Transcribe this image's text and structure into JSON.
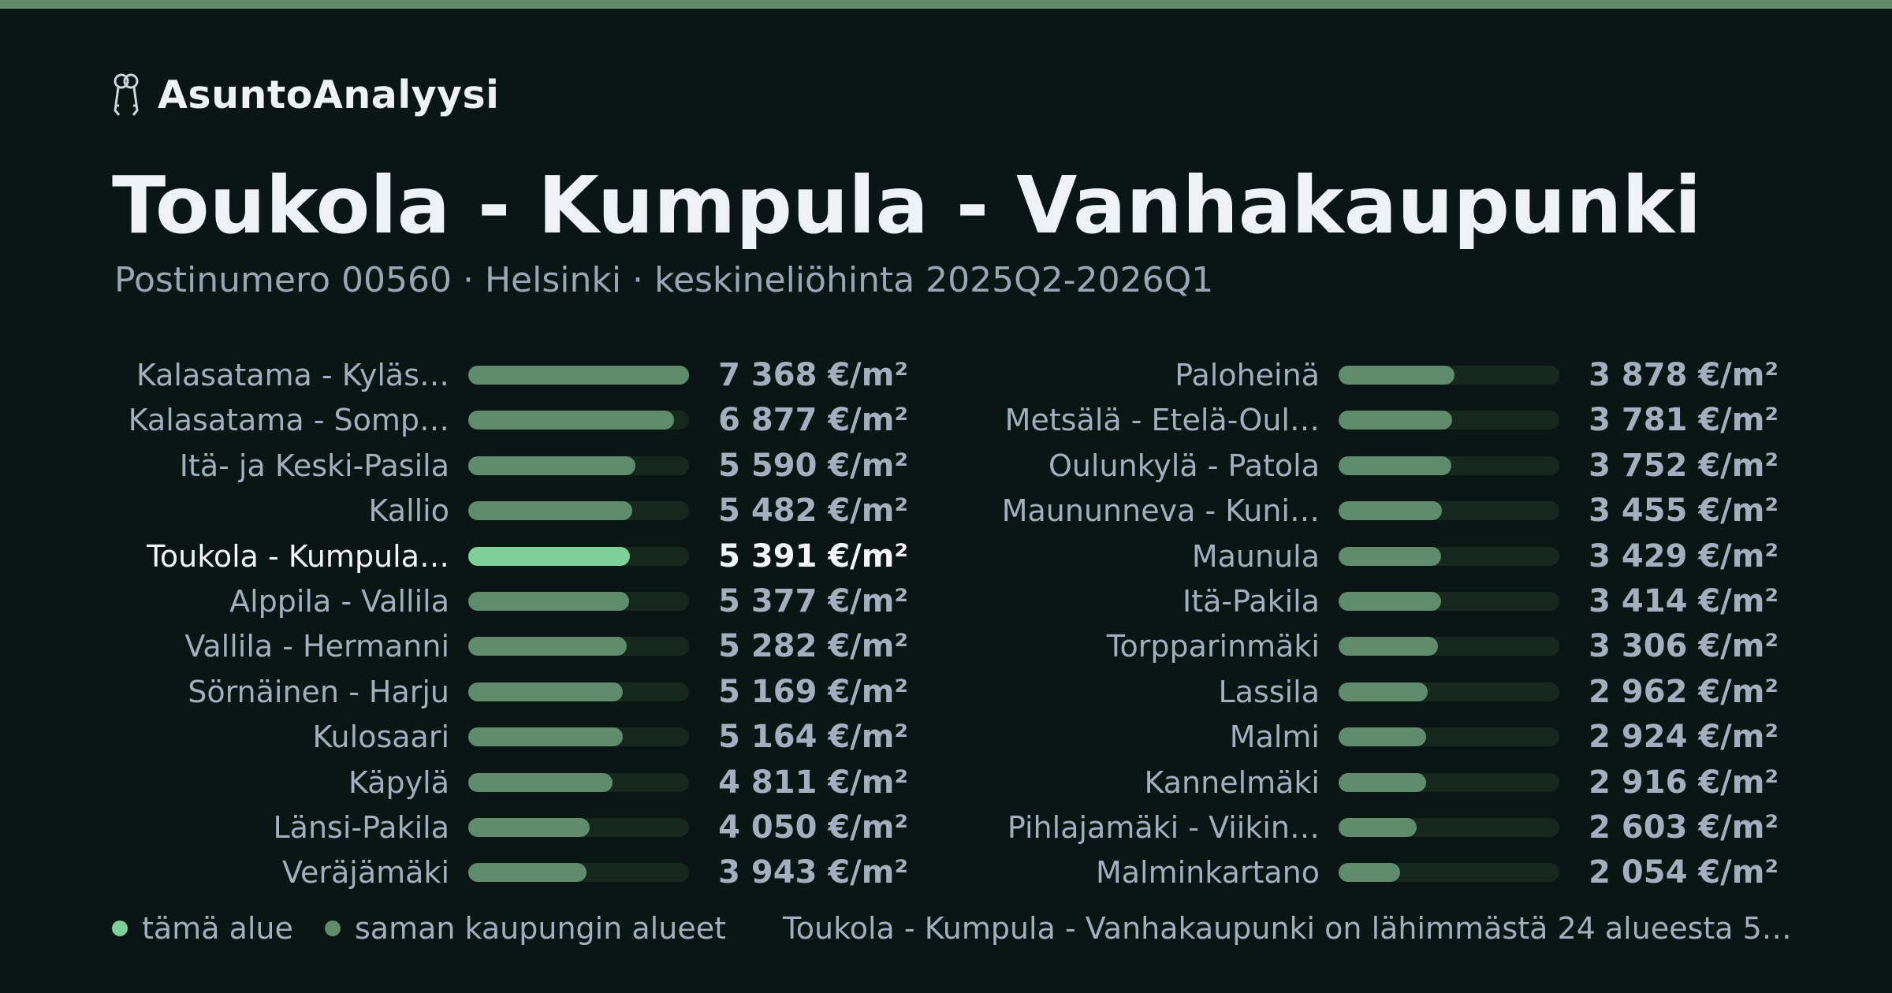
{
  "brand": {
    "name": "AsuntoAnalyysi",
    "icon": "keys-icon"
  },
  "title": "Toukola - Kumpula - Vanhakaupunki",
  "subtitle": "Postinumero 00560 · Helsinki · keskineliöhinta 2025Q2-2026Q1",
  "colors": {
    "accent": "#7ccf97",
    "bar": "#5e8c6c",
    "track": "#17291f",
    "background": "#0a1613",
    "stripe": "#5e8c6c"
  },
  "chart_data": {
    "type": "bar",
    "orientation": "horizontal",
    "unit": "€/m²",
    "xlim": [
      0,
      7368
    ],
    "current_index": 4,
    "categories": [
      "Kalasatama - Kyläs…",
      "Kalasatama - Somp…",
      "Itä- ja Keski-Pasila",
      "Kallio",
      "Toukola - Kumpula…",
      "Alppila - Vallila",
      "Vallila - Hermanni",
      "Sörnäinen - Harju",
      "Kulosaari",
      "Käpylä",
      "Länsi-Pakila",
      "Veräjämäki",
      "Paloheinä",
      "Metsälä - Etelä-Oul…",
      "Oulunkylä - Patola",
      "Maununneva - Kuni…",
      "Maunula",
      "Itä-Pakila",
      "Torpparinmäki",
      "Lassila",
      "Malmi",
      "Kannelmäki",
      "Pihlajamäki - Viikin…",
      "Malminkartano"
    ],
    "values": [
      7368,
      6877,
      5590,
      5482,
      5391,
      5377,
      5282,
      5169,
      5164,
      4811,
      4050,
      3943,
      3878,
      3781,
      3752,
      3455,
      3429,
      3414,
      3306,
      2962,
      2924,
      2916,
      2603,
      2054
    ],
    "value_labels": [
      "7 368 €/m²",
      "6 877 €/m²",
      "5 590 €/m²",
      "5 482 €/m²",
      "5 391 €/m²",
      "5 377 €/m²",
      "5 282 €/m²",
      "5 169 €/m²",
      "5 164 €/m²",
      "4 811 €/m²",
      "4 050 €/m²",
      "3 943 €/m²",
      "3 878 €/m²",
      "3 781 €/m²",
      "3 752 €/m²",
      "3 455 €/m²",
      "3 429 €/m²",
      "3 414 €/m²",
      "3 306 €/m²",
      "2 962 €/m²",
      "2 924 €/m²",
      "2 916 €/m²",
      "2 603 €/m²",
      "2 054 €/m²"
    ]
  },
  "legend": {
    "this_area": "tämä alue",
    "same_city": "saman kaupungin alueet"
  },
  "footnote": "Toukola - Kumpula - Vanhakaupunki on lähimmästä 24 alueesta 5…"
}
